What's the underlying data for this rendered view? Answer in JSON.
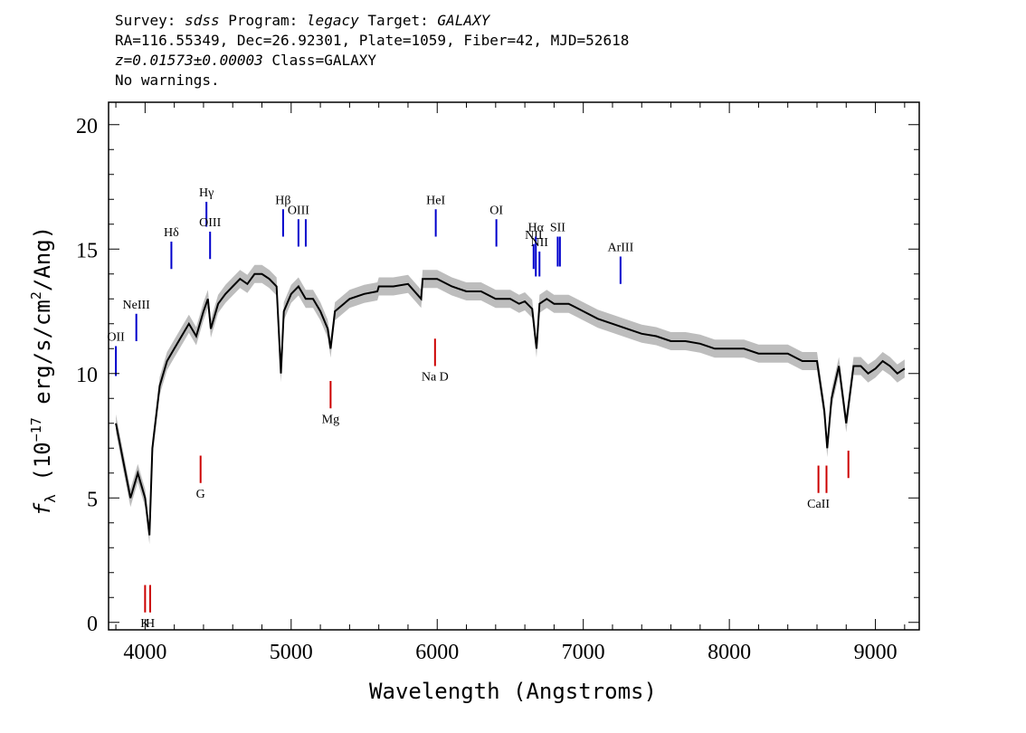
{
  "header": {
    "survey_label": "Survey: ",
    "survey": "sdss",
    "program_label": " Program: ",
    "program": "legacy",
    "target_label": " Target: ",
    "target": "GALAXY",
    "line2": "RA=116.55349, Dec=26.92301, Plate=1059, Fiber=42, MJD=52618",
    "redshift": "z=0.01573±0.00003",
    "class_text": " Class=GALAXY",
    "warnings": "No warnings."
  },
  "chart_data": {
    "type": "line",
    "xlabel": "Wavelength (Angstroms)",
    "ylabel_parts": {
      "f": "f",
      "sub": "λ",
      "pre": " (10",
      "sup_exp": "−17",
      "mid": " erg/s/cm",
      "sup2": "2",
      "post": "/Ang)"
    },
    "xlim": [
      3750,
      9300
    ],
    "ylim": [
      -0.3,
      20.9
    ],
    "xticks": [
      4000,
      5000,
      6000,
      7000,
      8000,
      9000
    ],
    "yticks": [
      0,
      5,
      10,
      15,
      20
    ],
    "grid": false,
    "colors": {
      "flux": "#000000",
      "noise_band": "#bdbdbd",
      "emission": "#0000cc",
      "absorption": "#cc0000"
    },
    "series": [
      {
        "role": "smoothed flux",
        "x": [
          3800,
          3850,
          3900,
          3950,
          4000,
          4030,
          4050,
          4100,
          4150,
          4200,
          4250,
          4300,
          4350,
          4400,
          4430,
          4450,
          4500,
          4550,
          4600,
          4650,
          4700,
          4750,
          4800,
          4850,
          4900,
          4930,
          4950,
          5000,
          5050,
          5100,
          5150,
          5200,
          5250,
          5270,
          5300,
          5400,
          5500,
          5590,
          5600,
          5700,
          5800,
          5890,
          5900,
          6000,
          6100,
          6200,
          6300,
          6400,
          6500,
          6560,
          6600,
          6650,
          6680,
          6700,
          6750,
          6800,
          6900,
          7000,
          7100,
          7200,
          7300,
          7400,
          7500,
          7600,
          7700,
          7800,
          7900,
          8000,
          8100,
          8200,
          8300,
          8400,
          8500,
          8600,
          8650,
          8670,
          8700,
          8750,
          8800,
          8850,
          8900,
          8950,
          9000,
          9050,
          9100,
          9150,
          9200
        ],
        "y": [
          8.0,
          6.5,
          5.0,
          6.0,
          5.0,
          3.5,
          7.0,
          9.5,
          10.5,
          11.0,
          11.5,
          12.0,
          11.5,
          12.5,
          13.0,
          11.8,
          12.8,
          13.2,
          13.5,
          13.8,
          13.6,
          14.0,
          14.0,
          13.8,
          13.5,
          10.0,
          12.5,
          13.2,
          13.5,
          13.0,
          13.0,
          12.5,
          11.8,
          11.0,
          12.5,
          13.0,
          13.2,
          13.3,
          13.5,
          13.5,
          13.6,
          13.0,
          13.8,
          13.8,
          13.5,
          13.3,
          13.3,
          13.0,
          13.0,
          12.8,
          12.9,
          12.6,
          11.0,
          12.8,
          13.0,
          12.8,
          12.8,
          12.5,
          12.2,
          12.0,
          11.8,
          11.6,
          11.5,
          11.3,
          11.3,
          11.2,
          11.0,
          11.0,
          11.0,
          10.8,
          10.8,
          10.8,
          10.5,
          10.5,
          8.5,
          7.0,
          9.0,
          10.3,
          8.0,
          10.3,
          10.3,
          10.0,
          10.2,
          10.5,
          10.3,
          10.0,
          10.2
        ]
      }
    ],
    "emission_lines": [
      {
        "label": "OII",
        "x": 3800,
        "y1": 9.9,
        "y2": 11.1
      },
      {
        "label": "NeIII",
        "x": 3940,
        "y1": 11.3,
        "y2": 12.4
      },
      {
        "label": "Hδ",
        "x": 4180,
        "y1": 14.2,
        "y2": 15.3
      },
      {
        "label": "Hγ",
        "x": 4420,
        "y1": 15.9,
        "y2": 16.9
      },
      {
        "label": "OIII",
        "x": 4445,
        "y1": 14.6,
        "y2": 15.7
      },
      {
        "label": "Hβ",
        "x": 4945,
        "y1": 15.5,
        "y2": 16.6
      },
      {
        "label": "OIII",
        "x": 5050,
        "y1": 15.1,
        "y2": 16.2
      },
      {
        "label": "",
        "x": 5100,
        "y1": 15.1,
        "y2": 16.2
      },
      {
        "label": "HeI",
        "x": 5990,
        "y1": 15.5,
        "y2": 16.6
      },
      {
        "label": "OI",
        "x": 6405,
        "y1": 15.1,
        "y2": 16.2
      },
      {
        "label": "NII",
        "x": 6660,
        "y1": 14.2,
        "y2": 15.2
      },
      {
        "label": "Hα",
        "x": 6675,
        "y1": 13.9,
        "y2": 15.5
      },
      {
        "label": "NII",
        "x": 6700,
        "y1": 13.9,
        "y2": 14.9
      },
      {
        "label": "SII",
        "x": 6825,
        "y1": 14.3,
        "y2": 15.5
      },
      {
        "label": "",
        "x": 6840,
        "y1": 14.3,
        "y2": 15.5
      },
      {
        "label": "ArIII",
        "x": 7255,
        "y1": 13.6,
        "y2": 14.7
      }
    ],
    "absorption_lines": [
      {
        "label": "K",
        "x": 4000,
        "y1": 0.4,
        "y2": 1.5
      },
      {
        "label": "H",
        "x": 4035,
        "y1": 0.4,
        "y2": 1.5
      },
      {
        "label": "G",
        "x": 4380,
        "y1": 5.6,
        "y2": 6.7
      },
      {
        "label": "Mg",
        "x": 5270,
        "y1": 8.6,
        "y2": 9.7
      },
      {
        "label": "Na D",
        "x": 5985,
        "y1": 10.3,
        "y2": 11.4
      },
      {
        "label": "CaII",
        "x": 8610,
        "y1": 5.2,
        "y2": 6.3
      },
      {
        "label": "",
        "x": 8665,
        "y1": 5.2,
        "y2": 6.3
      },
      {
        "label": "",
        "x": 8815,
        "y1": 5.8,
        "y2": 6.9
      }
    ]
  }
}
